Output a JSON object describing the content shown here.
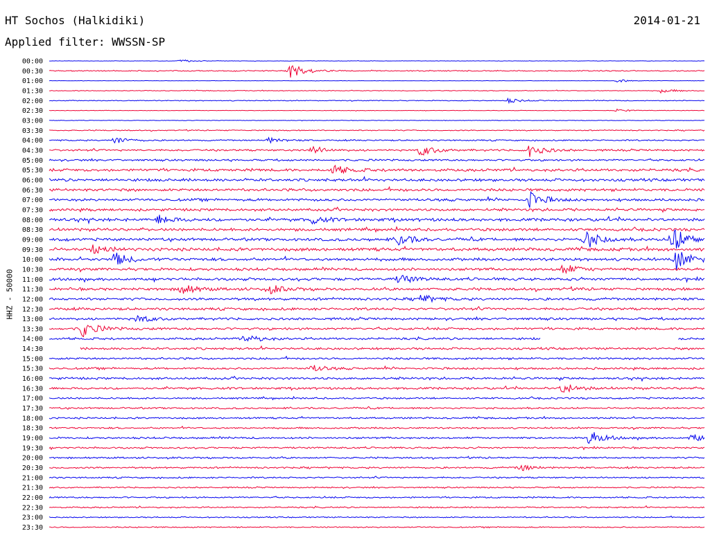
{
  "header": {
    "station": "HT Sochos (Halkidiki)",
    "date": "2014-01-21",
    "filter": "Applied filter: WWSSN-SP"
  },
  "chart_data": {
    "type": "line",
    "title": "HT Sochos (Halkidiki)",
    "xlabel": "",
    "ylabel": "HHZ - 50000",
    "trace_colors": [
      "#0000ee",
      "#ee0033"
    ],
    "rows": [
      "00:00",
      "00:30",
      "01:00",
      "01:30",
      "02:00",
      "02:30",
      "03:00",
      "03:30",
      "04:00",
      "04:30",
      "05:00",
      "05:30",
      "06:00",
      "06:30",
      "07:00",
      "07:30",
      "08:00",
      "08:30",
      "09:00",
      "09:30",
      "10:00",
      "10:30",
      "11:00",
      "11:30",
      "12:00",
      "12:30",
      "13:00",
      "13:30",
      "14:00",
      "14:30",
      "15:00",
      "15:30",
      "16:00",
      "16:30",
      "17:00",
      "17:30",
      "18:00",
      "18:30",
      "19:00",
      "19:30",
      "20:00",
      "20:30",
      "21:00",
      "21:30",
      "22:00",
      "22:30",
      "23:00",
      "23:30"
    ],
    "noise_level": [
      0.2,
      0.6,
      0.2,
      0.4,
      0.5,
      0.3,
      0.3,
      0.6,
      0.8,
      1.1,
      1.1,
      1.6,
      1.6,
      1.6,
      1.5,
      1.5,
      1.8,
      1.6,
      1.7,
      1.8,
      1.7,
      1.6,
      1.6,
      1.6,
      1.5,
      1.5,
      1.4,
      1.4,
      1.3,
      1.3,
      1.2,
      1.2,
      1.3,
      1.3,
      1.0,
      1.0,
      1.0,
      1.0,
      1.1,
      1.0,
      1.0,
      1.0,
      0.9,
      0.8,
      0.9,
      0.8,
      0.7,
      0.7
    ],
    "events": [
      {
        "row": "00:00",
        "minute": 6,
        "amp": 2
      },
      {
        "row": "00:30",
        "minute": 11,
        "amp": 12
      },
      {
        "row": "01:00",
        "minute": 26,
        "amp": 2
      },
      {
        "row": "01:30",
        "minute": 28,
        "amp": 3
      },
      {
        "row": "02:00",
        "minute": 21,
        "amp": 3
      },
      {
        "row": "02:30",
        "minute": 26,
        "amp": 2
      },
      {
        "row": "04:00",
        "minute": 3,
        "amp": 5
      },
      {
        "row": "04:00",
        "minute": 10,
        "amp": 4
      },
      {
        "row": "04:30",
        "minute": 12,
        "amp": 6
      },
      {
        "row": "04:30",
        "minute": 17,
        "amp": 8
      },
      {
        "row": "04:30",
        "minute": 22,
        "amp": 9
      },
      {
        "row": "05:30",
        "minute": 13,
        "amp": 7
      },
      {
        "row": "07:00",
        "minute": 22,
        "amp": 12
      },
      {
        "row": "08:00",
        "minute": 5,
        "amp": 6
      },
      {
        "row": "08:00",
        "minute": 12,
        "amp": 5
      },
      {
        "row": "09:00",
        "minute": 16,
        "amp": 8
      },
      {
        "row": "09:00",
        "minute": 24.5,
        "amp": 16
      },
      {
        "row": "09:00",
        "minute": 28.5,
        "amp": 22
      },
      {
        "row": "09:30",
        "minute": 2,
        "amp": 6
      },
      {
        "row": "10:00",
        "minute": 3,
        "amp": 10
      },
      {
        "row": "10:00",
        "minute": 28.7,
        "amp": 16
      },
      {
        "row": "10:30",
        "minute": 23.5,
        "amp": 8
      },
      {
        "row": "11:00",
        "minute": 16,
        "amp": 7
      },
      {
        "row": "11:30",
        "minute": 6,
        "amp": 9
      },
      {
        "row": "11:30",
        "minute": 10,
        "amp": 7
      },
      {
        "row": "12:00",
        "minute": 17,
        "amp": 6
      },
      {
        "row": "13:00",
        "minute": 4,
        "amp": 5
      },
      {
        "row": "13:30",
        "minute": 1.5,
        "amp": 12
      },
      {
        "row": "14:00",
        "minute": 9,
        "amp": 7
      },
      {
        "row": "15:30",
        "minute": 12,
        "amp": 5
      },
      {
        "row": "16:30",
        "minute": 23.5,
        "amp": 8
      },
      {
        "row": "19:00",
        "minute": 24.7,
        "amp": 12
      },
      {
        "row": "19:00",
        "minute": 29.4,
        "amp": 6
      },
      {
        "row": "20:30",
        "minute": 21.5,
        "amp": 5
      }
    ],
    "gaps": [
      {
        "row": "14:00",
        "from_minute": 22.5,
        "to_minute": 28.8
      },
      {
        "row": "14:30",
        "from_minute": 0,
        "to_minute": 1.4
      }
    ]
  }
}
